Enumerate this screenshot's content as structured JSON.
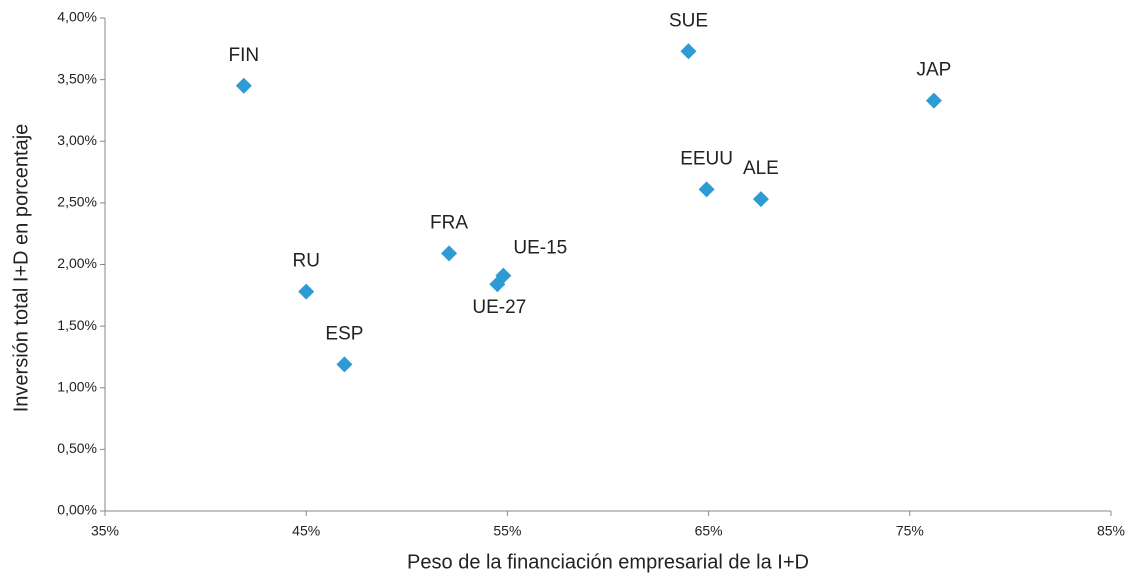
{
  "chart_data": {
    "type": "scatter",
    "x_label": "Peso de la financiación empresarial de la I+D",
    "y_label": "Inversión total I+D en porcentaje",
    "labels": [
      "FIN",
      "SUE",
      "JAP",
      "EEUU",
      "ALE",
      "FRA",
      "UE-15",
      "UE-27",
      "RU",
      "ESP"
    ],
    "x": [
      41.9,
      64.0,
      76.2,
      64.9,
      67.6,
      52.1,
      54.8,
      54.5,
      45.0,
      46.9
    ],
    "values": [
      3.45,
      3.73,
      3.33,
      2.61,
      2.53,
      2.09,
      1.91,
      1.84,
      1.78,
      1.19
    ],
    "color": "#2e9bd4",
    "xlim": [
      35,
      85
    ],
    "xticks": [
      {
        "value": 35,
        "label": "35%"
      },
      {
        "value": 45,
        "label": "45%"
      },
      {
        "value": 55,
        "label": "55%"
      },
      {
        "value": 65,
        "label": "65%"
      },
      {
        "value": 75,
        "label": "75%"
      },
      {
        "value": 85,
        "label": "85%"
      }
    ],
    "ylim": [
      0,
      4
    ],
    "yticks": [
      {
        "value": 0,
        "label": "0,00%"
      },
      {
        "value": 0.5,
        "label": "0,50%"
      },
      {
        "value": 1,
        "label": "1,00%"
      },
      {
        "value": 1.5,
        "label": "1,50%"
      },
      {
        "value": 2,
        "label": "2,00%"
      },
      {
        "value": 2.5,
        "label": "2,50%"
      },
      {
        "value": 3,
        "label": "3,00%"
      },
      {
        "value": 3.5,
        "label": "3,50%"
      },
      {
        "value": 4,
        "label": "4,00%"
      }
    ],
    "grid": false
  }
}
